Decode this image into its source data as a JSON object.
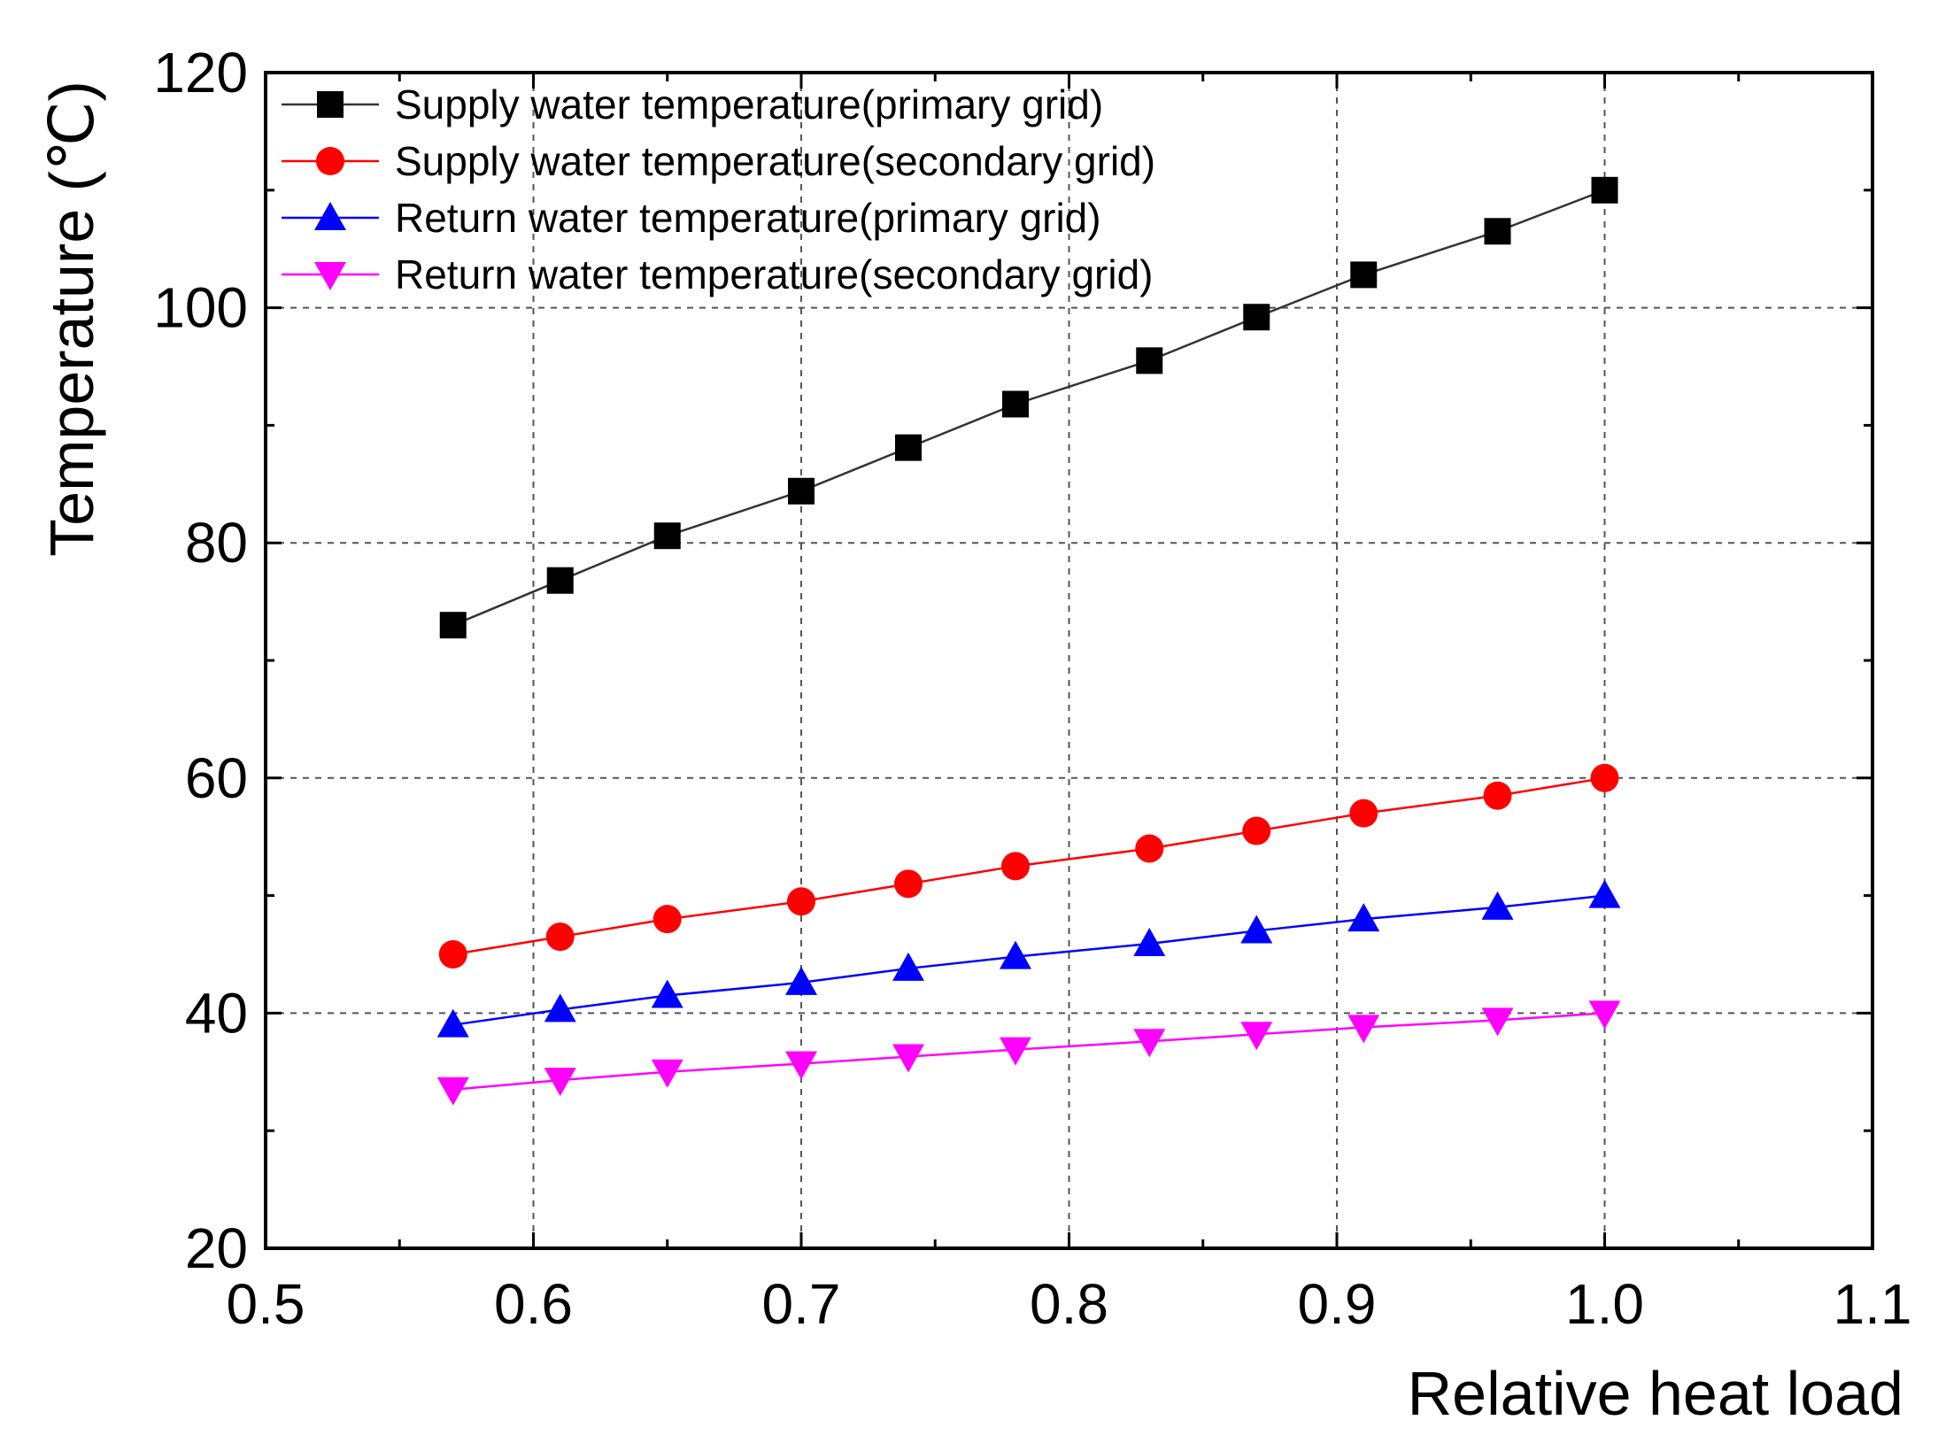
{
  "chart_data": {
    "type": "line",
    "title": "",
    "xlabel": "Relative heat load",
    "ylabel": "Temperature (℃)",
    "xlim": [
      0.5,
      1.1
    ],
    "ylim": [
      20,
      120
    ],
    "x_ticks": [
      0.5,
      0.6,
      0.7,
      0.8,
      0.9,
      1.0,
      1.1
    ],
    "x_tick_labels": [
      "0.5",
      "0.6",
      "0.7",
      "0.8",
      "0.9",
      "1.0",
      "1.1"
    ],
    "y_ticks": [
      20,
      40,
      60,
      80,
      100,
      120
    ],
    "y_tick_labels": [
      "20",
      "40",
      "60",
      "80",
      "100",
      "120"
    ],
    "grid": true,
    "legend_position": "top-left",
    "x": [
      0.57,
      0.61,
      0.65,
      0.7,
      0.74,
      0.78,
      0.83,
      0.87,
      0.91,
      0.96,
      1.0
    ],
    "series": [
      {
        "name": "Supply water temperature(primary grid)",
        "marker": "square",
        "color": "#000000",
        "values": [
          73,
          76.8,
          80.6,
          84.4,
          88.1,
          91.8,
          95.5,
          99.2,
          102.8,
          106.5,
          110
        ]
      },
      {
        "name": "Supply water temperature(secondary grid)",
        "marker": "circle",
        "color": "#ff0000",
        "values": [
          45,
          46.5,
          48,
          49.5,
          51,
          52.5,
          54,
          55.5,
          57,
          58.5,
          60
        ]
      },
      {
        "name": "Return water temperature(primary grid)",
        "marker": "triangle-up",
        "color": "#0000ff",
        "values": [
          39,
          40.3,
          41.5,
          42.6,
          43.8,
          44.8,
          45.9,
          47,
          48,
          49,
          50
        ]
      },
      {
        "name": "Return water temperature(secondary grid)",
        "marker": "triangle-down",
        "color": "#ff00ff",
        "values": [
          33.5,
          34.3,
          35,
          35.7,
          36.3,
          36.9,
          37.6,
          38.2,
          38.8,
          39.4,
          40
        ]
      }
    ]
  }
}
